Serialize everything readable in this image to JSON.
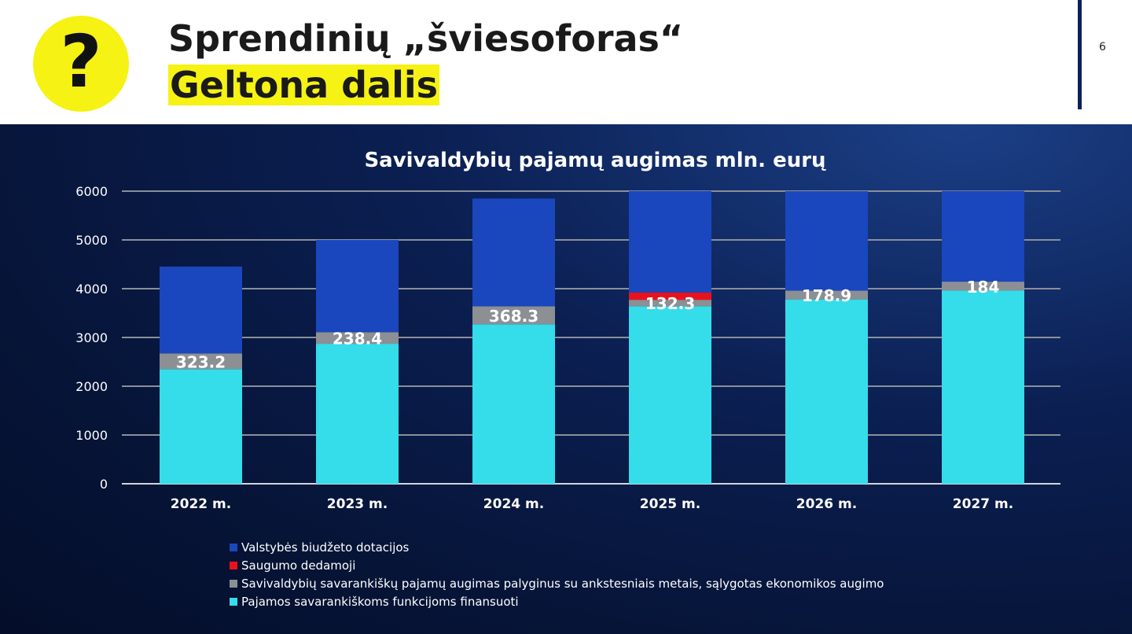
{
  "header": {
    "icon_glyph": "?",
    "title_line1": "Sprendinių „šviesoforas“",
    "title_line2": "Geltona dalis",
    "page_number": "6"
  },
  "colors": {
    "dotacijos": "#1a47bd",
    "saugumo": "#e8121c",
    "augimas": "#8c8f94",
    "funkcijos": "#35dcea"
  },
  "chart_data": {
    "type": "bar",
    "stacked": true,
    "title": "Savivaldybių pajamų augimas mln. eurų",
    "categories": [
      "2022 m.",
      "2023 m.",
      "2024 m.",
      "2025 m.",
      "2026 m.",
      "2027 m."
    ],
    "ylim": [
      0,
      6000
    ],
    "yticks": [
      "0",
      "1000",
      "2000",
      "3000",
      "4000",
      "5000",
      "6000"
    ],
    "grid": true,
    "legend_position": "bottom",
    "series": [
      {
        "key": "funkcijos",
        "name": "Pajamos savarankiškoms funkcijoms finansuoti",
        "values": [
          2350,
          2870,
          3270,
          3640,
          3780,
          3960
        ]
      },
      {
        "key": "augimas",
        "name": "Savivaldybių savarankiškų pajamų augimas palyginus su ankstesniais metais, sąlygotas ekonomikos augimo",
        "values": [
          323.2,
          238.4,
          368.3,
          132.3,
          178.9,
          184
        ]
      },
      {
        "key": "saugumo",
        "name": "Saugumo dedamoji",
        "values": [
          0,
          0,
          0,
          150,
          0,
          0
        ]
      },
      {
        "key": "dotacijos",
        "name": "Valstybės biudžeto dotacijos",
        "values": [
          1780,
          1890,
          2210,
          2080,
          2040,
          1860
        ]
      }
    ],
    "data_labels": [
      "323.2",
      "238.4",
      "368.3",
      "132.3",
      "178.9",
      "184"
    ]
  },
  "legend_order": [
    "dotacijos",
    "saugumo",
    "augimas",
    "funkcijos"
  ]
}
